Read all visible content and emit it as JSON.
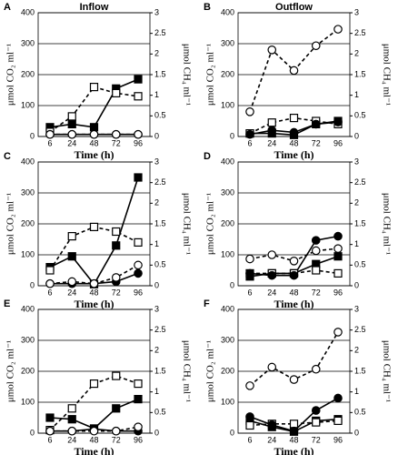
{
  "chart_data": [
    {
      "type": "line",
      "label": "A",
      "title": "Inflow",
      "categories": [
        "6",
        "24",
        "48",
        "72",
        "96"
      ],
      "xlabel": "Time (h)",
      "ylabel": "μmol CO₂ ml⁻¹",
      "y2label": "μmol CH₄ ml⁻¹",
      "ylim": [
        0,
        400
      ],
      "yticks": [
        0,
        100,
        200,
        300,
        400
      ],
      "y2lim": [
        0,
        3
      ],
      "y2ticks": [
        0,
        0.5,
        1,
        1.5,
        2,
        2.5,
        3
      ],
      "grid": true,
      "series": [
        {
          "color": "#000000",
          "marker": "square",
          "filled": true,
          "dashed": false,
          "values": [
            30,
            40,
            30,
            155,
            185
          ]
        },
        {
          "color": "#000000",
          "marker": "square",
          "filled": false,
          "dashed": true,
          "values": [
            15,
            65,
            160,
            140,
            130
          ]
        },
        {
          "color": "#000000",
          "marker": "circle",
          "filled": true,
          "dashed": false,
          "axis": "y2",
          "values": [
            0.05,
            0.05,
            0.05,
            0.05,
            0.05
          ]
        },
        {
          "color": "#000000",
          "marker": "circle",
          "filled": false,
          "dashed": true,
          "axis": "y2",
          "values": [
            0.05,
            0.05,
            0.05,
            0.05,
            0.05
          ]
        }
      ]
    },
    {
      "type": "line",
      "label": "B",
      "title": "Outflow",
      "categories": [
        "6",
        "24",
        "48",
        "72",
        "96"
      ],
      "xlabel": "Time (h)",
      "ylabel": "μmol CO₂ ml⁻¹",
      "y2label": "μmol CH₄ ml⁻¹",
      "ylim": [
        0,
        400
      ],
      "yticks": [
        0,
        100,
        200,
        300,
        400
      ],
      "y2lim": [
        0,
        3
      ],
      "y2ticks": [
        0,
        0.5,
        1,
        1.5,
        2,
        2.5,
        3
      ],
      "grid": true,
      "series": [
        {
          "color": "#000000",
          "marker": "square",
          "filled": true,
          "dashed": false,
          "values": [
            10,
            10,
            5,
            40,
            50
          ]
        },
        {
          "color": "#000000",
          "marker": "square",
          "filled": false,
          "dashed": true,
          "values": [
            10,
            45,
            60,
            50,
            40
          ]
        },
        {
          "color": "#000000",
          "marker": "circle",
          "filled": true,
          "dashed": false,
          "axis": "y2",
          "values": [
            0.05,
            0.15,
            0.1,
            0.3,
            0.35
          ]
        },
        {
          "color": "#000000",
          "marker": "circle",
          "filled": false,
          "dashed": true,
          "axis": "y2",
          "values": [
            0.6,
            2.1,
            1.6,
            2.2,
            2.6
          ]
        }
      ]
    },
    {
      "type": "line",
      "label": "C",
      "categories": [
        "6",
        "24",
        "48",
        "72",
        "96"
      ],
      "xlabel": "Time (h)",
      "ylabel": "μmol CO₂ ml⁻¹",
      "y2label": "μmol CH₄ ml⁻¹",
      "ylim": [
        0,
        400
      ],
      "yticks": [
        0,
        100,
        200,
        300,
        400
      ],
      "y2lim": [
        0,
        3
      ],
      "y2ticks": [
        0,
        0.5,
        1,
        1.5,
        2,
        2.5,
        3
      ],
      "grid": true,
      "series": [
        {
          "color": "#000000",
          "marker": "square",
          "filled": true,
          "dashed": false,
          "values": [
            60,
            95,
            5,
            130,
            350
          ]
        },
        {
          "color": "#000000",
          "marker": "square",
          "filled": false,
          "dashed": true,
          "values": [
            50,
            160,
            190,
            175,
            140
          ]
        },
        {
          "color": "#000000",
          "marker": "circle",
          "filled": true,
          "dashed": false,
          "axis": "y2",
          "values": [
            0.05,
            0.05,
            0.05,
            0.1,
            0.3
          ]
        },
        {
          "color": "#000000",
          "marker": "circle",
          "filled": false,
          "dashed": true,
          "axis": "y2",
          "values": [
            0.05,
            0.1,
            0.05,
            0.2,
            0.5
          ]
        }
      ]
    },
    {
      "type": "line",
      "label": "D",
      "categories": [
        "6",
        "24",
        "48",
        "72",
        "96"
      ],
      "xlabel": "Time (h)",
      "ylabel": "μmol CO₂ ml⁻¹",
      "y2label": "μmol CH₄ ml⁻¹",
      "ylim": [
        0,
        400
      ],
      "yticks": [
        0,
        100,
        200,
        300,
        400
      ],
      "y2lim": [
        0,
        3
      ],
      "y2ticks": [
        0,
        0.5,
        1,
        1.5,
        2,
        2.5,
        3
      ],
      "grid": true,
      "series": [
        {
          "color": "#000000",
          "marker": "square",
          "filled": true,
          "dashed": false,
          "values": [
            30,
            40,
            40,
            70,
            95
          ]
        },
        {
          "color": "#000000",
          "marker": "square",
          "filled": false,
          "dashed": true,
          "values": [
            40,
            40,
            40,
            50,
            40
          ]
        },
        {
          "color": "#000000",
          "marker": "circle",
          "filled": true,
          "dashed": false,
          "axis": "y2",
          "values": [
            0.3,
            0.25,
            0.25,
            1.1,
            1.2
          ]
        },
        {
          "color": "#000000",
          "marker": "circle",
          "filled": false,
          "dashed": true,
          "axis": "y2",
          "values": [
            0.65,
            0.75,
            0.6,
            0.85,
            0.9
          ]
        }
      ]
    },
    {
      "type": "line",
      "label": "E",
      "categories": [
        "6",
        "24",
        "48",
        "72",
        "96"
      ],
      "xlabel": "Time (h)",
      "ylabel": "μmol CO₂ ml⁻¹",
      "y2label": "μmol CH₄ ml⁻¹",
      "ylim": [
        0,
        400
      ],
      "yticks": [
        0,
        100,
        200,
        300,
        400
      ],
      "y2lim": [
        0,
        3
      ],
      "y2ticks": [
        0,
        0.5,
        1,
        1.5,
        2,
        2.5,
        3
      ],
      "grid": true,
      "series": [
        {
          "color": "#000000",
          "marker": "square",
          "filled": true,
          "dashed": false,
          "values": [
            50,
            45,
            15,
            80,
            110
          ]
        },
        {
          "color": "#000000",
          "marker": "square",
          "filled": false,
          "dashed": true,
          "values": [
            10,
            80,
            160,
            185,
            160
          ]
        },
        {
          "color": "#000000",
          "marker": "circle",
          "filled": true,
          "dashed": false,
          "axis": "y2",
          "values": [
            0.05,
            0.05,
            0.1,
            0.05,
            0.05
          ]
        },
        {
          "color": "#000000",
          "marker": "circle",
          "filled": false,
          "dashed": true,
          "axis": "y2",
          "values": [
            0.05,
            0.05,
            0.05,
            0.05,
            0.15
          ]
        }
      ]
    },
    {
      "type": "line",
      "label": "F",
      "categories": [
        "6",
        "24",
        "48",
        "72",
        "96"
      ],
      "xlabel": "Time (h)",
      "ylabel": "μmol CO₂ ml⁻¹",
      "y2label": "μmol CH₄ ml⁻¹",
      "ylim": [
        0,
        400
      ],
      "yticks": [
        0,
        100,
        200,
        300,
        400
      ],
      "y2lim": [
        0,
        3
      ],
      "y2ticks": [
        0,
        0.5,
        1,
        1.5,
        2,
        2.5,
        3
      ],
      "grid": true,
      "series": [
        {
          "color": "#000000",
          "marker": "square",
          "filled": true,
          "dashed": false,
          "values": [
            40,
            20,
            5,
            40,
            45
          ]
        },
        {
          "color": "#000000",
          "marker": "square",
          "filled": false,
          "dashed": true,
          "values": [
            25,
            30,
            30,
            35,
            40
          ]
        },
        {
          "color": "#000000",
          "marker": "circle",
          "filled": true,
          "dashed": false,
          "axis": "y2",
          "values": [
            0.4,
            0.2,
            0.05,
            0.55,
            0.85
          ]
        },
        {
          "color": "#000000",
          "marker": "circle",
          "filled": false,
          "dashed": true,
          "axis": "y2",
          "values": [
            1.15,
            1.6,
            1.3,
            1.55,
            2.45
          ]
        }
      ]
    }
  ]
}
